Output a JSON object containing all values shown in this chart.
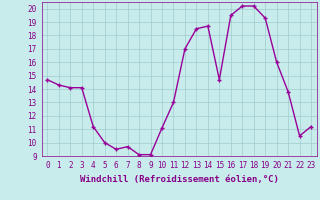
{
  "x": [
    0,
    1,
    2,
    3,
    4,
    5,
    6,
    7,
    8,
    9,
    10,
    11,
    12,
    13,
    14,
    15,
    16,
    17,
    18,
    19,
    20,
    21,
    22,
    23
  ],
  "y": [
    14.7,
    14.3,
    14.1,
    14.1,
    11.2,
    10.0,
    9.5,
    9.7,
    9.1,
    9.1,
    11.1,
    13.0,
    17.0,
    18.5,
    18.7,
    14.7,
    19.5,
    20.2,
    20.2,
    19.3,
    16.0,
    13.8,
    10.5,
    11.2
  ],
  "line_color": "#990099",
  "marker": "+",
  "marker_size": 3,
  "bg_color": "#c8ecec",
  "grid_color": "#a0cccc",
  "xlabel": "Windchill (Refroidissement éolien,°C)",
  "xlim": [
    -0.5,
    23.5
  ],
  "ylim": [
    9,
    20.5
  ],
  "yticks": [
    9,
    10,
    11,
    12,
    13,
    14,
    15,
    16,
    17,
    18,
    19,
    20
  ],
  "xticks": [
    0,
    1,
    2,
    3,
    4,
    5,
    6,
    7,
    8,
    9,
    10,
    11,
    12,
    13,
    14,
    15,
    16,
    17,
    18,
    19,
    20,
    21,
    22,
    23
  ],
  "label_color": "#880088",
  "label_fontsize": 6.5,
  "tick_fontsize": 5.5,
  "linewidth": 1.0
}
